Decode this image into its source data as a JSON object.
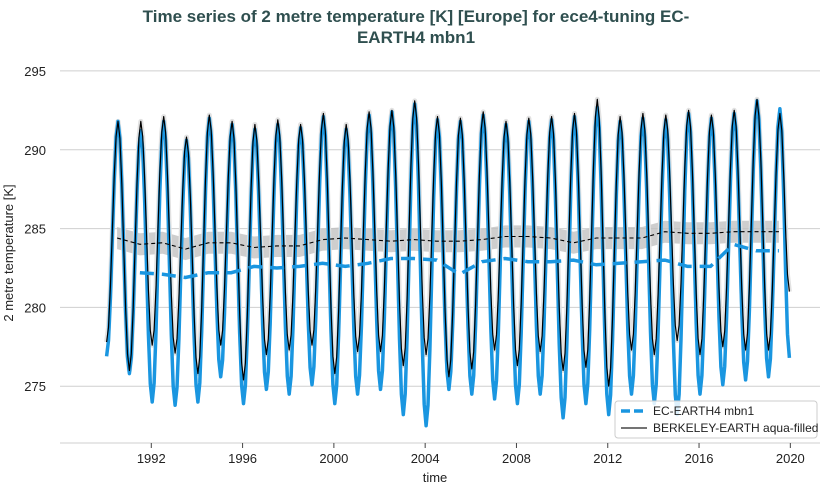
{
  "chart_data": {
    "type": "line",
    "title": "Time series of 2 metre temperature [K] [Europe] for ece4-tuning EC-EARTH4 mbn1",
    "title_lines": [
      "Time series of 2 metre temperature [K] [Europe] for ece4-tuning EC-",
      "EARTH4 mbn1"
    ],
    "xlabel": "time",
    "ylabel": "2 metre temperature [K]",
    "xlim": [
      1988.0,
      2021.3
    ],
    "ylim": [
      271.4,
      296.2
    ],
    "xticks": [
      1992,
      1996,
      2000,
      2004,
      2008,
      2012,
      2016,
      2020
    ],
    "yticks": [
      275,
      280,
      285,
      290,
      295
    ],
    "grid": "horizontal",
    "legend_position": "bottom-right",
    "years": [
      1990,
      1991,
      1992,
      1993,
      1994,
      1995,
      1996,
      1997,
      1998,
      1999,
      2000,
      2001,
      2002,
      2003,
      2004,
      2005,
      2006,
      2007,
      2008,
      2009,
      2010,
      2011,
      2012,
      2013,
      2014,
      2015,
      2016,
      2017,
      2018,
      2019
    ],
    "series": [
      {
        "name": "EC-EARTH4 mbn1",
        "color": "#1a96e0",
        "style": "solid monthly, dashed annual mean",
        "january_min": [
          276.9,
          275.8,
          274.0,
          273.8,
          274.0,
          275.6,
          273.9,
          274.8,
          274.5,
          275.1,
          273.9,
          274.5,
          274.8,
          273.2,
          272.5,
          274.8,
          274.5,
          274.2,
          273.9,
          274.5,
          273.0,
          273.9,
          273.2,
          274.5,
          273.9,
          273.2,
          274.5,
          275.1,
          275.4,
          275.6
        ],
        "july_max": [
          291.8,
          291.2,
          291.8,
          290.6,
          292.0,
          291.6,
          291.3,
          291.6,
          291.4,
          292.1,
          291.3,
          292.2,
          292.4,
          292.9,
          291.9,
          291.8,
          292.2,
          291.6,
          291.8,
          291.9,
          292.1,
          292.7,
          291.8,
          292.0,
          291.9,
          292.3,
          292.0,
          292.3,
          293.1,
          292.6
        ],
        "december_last": 276.8,
        "annual_mean_years": [
          1991,
          1992,
          1993,
          1994,
          1995,
          1996,
          1997,
          1998,
          1999,
          2000,
          2001,
          2002,
          2003,
          2004,
          2005,
          2006,
          2007,
          2008,
          2009,
          2010,
          2011,
          2012,
          2013,
          2014,
          2015,
          2016,
          2017,
          2018,
          2019
        ],
        "annual_mean": [
          282.2,
          282.1,
          281.9,
          282.2,
          282.2,
          282.6,
          282.5,
          282.6,
          282.8,
          282.6,
          282.8,
          283.1,
          283.1,
          283.0,
          282.1,
          282.9,
          283.1,
          282.9,
          282.9,
          283.0,
          282.7,
          282.8,
          282.9,
          283.0,
          282.6,
          282.6,
          284.0,
          283.6,
          283.6
        ]
      },
      {
        "name": "BERKELEY-EARTH aqua-filled",
        "color": "#000000",
        "style": "solid monthly, dashed annual mean with grey uncertainty band",
        "january_min": [
          277.8,
          276.0,
          277.6,
          277.1,
          275.8,
          277.6,
          275.4,
          277.0,
          277.3,
          277.6,
          275.8,
          277.2,
          277.2,
          276.3,
          277.0,
          275.6,
          276.1,
          277.3,
          276.3,
          277.2,
          276.0,
          276.2,
          275.0,
          277.3,
          277.0,
          277.9,
          277.0,
          277.5,
          277.3,
          277.3
        ],
        "july_max": [
          291.8,
          291.8,
          292.1,
          290.8,
          292.2,
          291.8,
          291.6,
          291.9,
          291.6,
          292.3,
          291.6,
          292.4,
          292.5,
          293.1,
          292.1,
          292.0,
          292.4,
          291.8,
          292.0,
          292.1,
          292.3,
          293.2,
          292.1,
          292.3,
          292.2,
          292.5,
          292.2,
          292.5,
          293.2,
          292.3
        ],
        "december_last": 281.0,
        "annual_mean_years": [
          1990,
          1991,
          1992,
          1993,
          1994,
          1995,
          1996,
          1997,
          1998,
          1999,
          2000,
          2001,
          2002,
          2003,
          2004,
          2005,
          2006,
          2007,
          2008,
          2009,
          2010,
          2011,
          2012,
          2013,
          2014,
          2015,
          2016,
          2017,
          2018,
          2019
        ],
        "annual_mean": [
          284.4,
          284.0,
          284.1,
          283.7,
          284.1,
          284.1,
          283.8,
          283.9,
          283.9,
          284.3,
          284.4,
          284.3,
          284.2,
          284.3,
          284.2,
          284.2,
          284.3,
          284.5,
          284.5,
          284.4,
          284.1,
          284.4,
          284.4,
          284.4,
          284.8,
          284.7,
          284.7,
          284.8,
          284.8,
          284.8
        ],
        "annual_mean_band_halfwidth": 0.7
      }
    ]
  }
}
